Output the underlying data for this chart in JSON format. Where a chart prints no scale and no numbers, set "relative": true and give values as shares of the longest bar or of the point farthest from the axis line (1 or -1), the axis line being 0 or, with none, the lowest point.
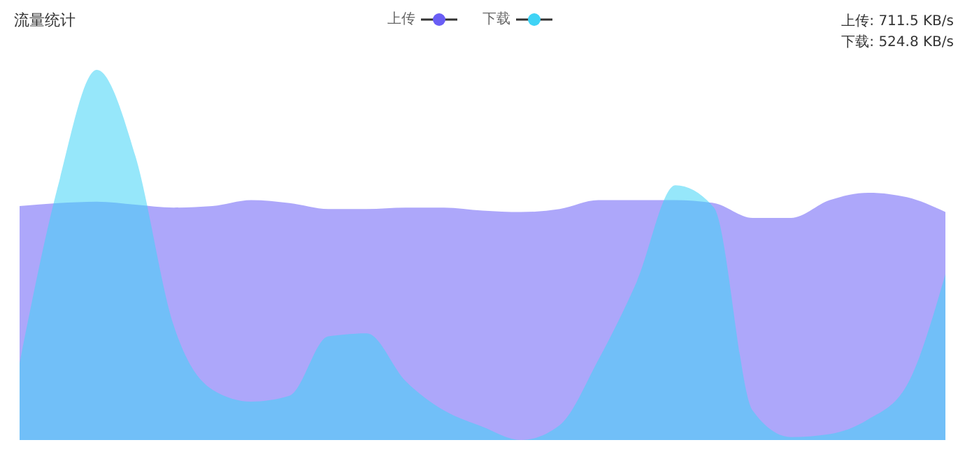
{
  "chart_data": {
    "type": "area",
    "title": "流量统计",
    "relative": true,
    "legend": "top",
    "categories": [
      null,
      null,
      null,
      null,
      null,
      null,
      null,
      null,
      null,
      null,
      null,
      null,
      null,
      null,
      null,
      null,
      null,
      null,
      null,
      null,
      null,
      null,
      null,
      null,
      null
    ],
    "series": [
      {
        "name": "上传",
        "color": "#6a5ef5",
        "values": [
          0.632,
          0.64,
          0.644,
          0.636,
          0.628,
          0.632,
          0.648,
          0.64,
          0.624,
          0.624,
          0.628,
          0.628,
          0.62,
          0.616,
          0.624,
          0.648,
          0.648,
          0.648,
          0.64,
          0.6,
          0.6,
          0.648,
          0.668,
          0.656,
          0.616
        ]
      },
      {
        "name": "下载",
        "color": "#3fd3f5",
        "values": [
          0.208,
          0.688,
          1,
          0.768,
          0.308,
          0.136,
          0.104,
          0.12,
          0.28,
          0.288,
          0.16,
          0.08,
          0.036,
          0,
          0.04,
          0.216,
          0.428,
          0.688,
          0.628,
          0.08,
          0.008,
          0.016,
          0.056,
          0.148,
          0.448
        ]
      }
    ],
    "annotations": [
      "上传: 711.5 KB/s",
      "下载: 524.8 KB/s"
    ]
  }
}
